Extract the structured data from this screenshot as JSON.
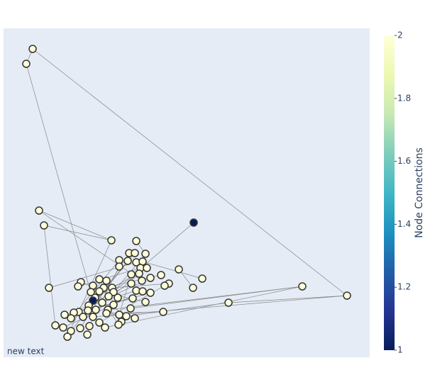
{
  "chart_data": {
    "type": "network",
    "annotation": "new text",
    "colorbar_title": "Node Connections",
    "xlim": [
      0,
      516
    ],
    "ylim": [
      0,
      464
    ],
    "x": [
      41,
      32,
      50,
      57,
      268,
      152,
      187,
      177,
      185,
      200,
      163,
      175,
      187,
      196,
      163,
      193,
      202,
      247,
      180,
      191,
      222,
      207,
      280,
      135,
      145,
      109,
      195,
      180,
      233,
      227,
      64,
      105,
      126,
      153,
      141,
      123,
      135,
      155,
      267,
      187,
      196,
      207,
      421,
      484,
      148,
      129,
      161,
      182,
      200,
      126,
      139,
      155,
      120,
      317,
      147,
      130,
      119,
      106,
      99,
      179,
      225,
      163,
      173,
      86,
      95,
      112,
      126,
      145,
      135,
      166,
      185,
      73,
      84,
      108,
      121,
      143,
      162,
      95,
      118,
      90
    ],
    "y": [
      435,
      414,
      207,
      186,
      190,
      165,
      164,
      147,
      147,
      146,
      137,
      136,
      134,
      135,
      128,
      126,
      126,
      124,
      117,
      118,
      116,
      112,
      111,
      110,
      108,
      106,
      108,
      104,
      104,
      101,
      98,
      100,
      101,
      98,
      98,
      92,
      93,
      92,
      98,
      94,
      93,
      91,
      100,
      87,
      86,
      84,
      84,
      83,
      78,
      80,
      77,
      74,
      73,
      77,
      67,
      67,
      66,
      64,
      63,
      69,
      64,
      60,
      58,
      60,
      55,
      57,
      57,
      62,
      49,
      50,
      55,
      45,
      42,
      41,
      44,
      42,
      46,
      37,
      32,
      29
    ],
    "values": [
      2,
      2,
      2,
      2,
      1,
      2,
      2,
      2,
      2,
      2,
      2,
      2,
      2,
      2,
      2,
      2,
      2,
      2,
      2,
      2,
      2,
      2,
      2,
      2,
      2,
      2,
      2,
      2,
      2,
      2,
      2,
      2,
      2,
      2,
      2,
      2,
      2,
      2,
      2,
      2,
      2,
      2,
      2,
      2,
      2,
      2,
      2,
      2,
      2,
      1,
      2,
      2,
      2,
      2,
      2,
      2,
      2,
      2,
      2,
      2,
      2,
      2,
      2,
      2,
      2,
      2,
      2,
      2,
      2,
      2,
      2,
      2,
      2,
      2,
      2,
      2,
      2,
      2,
      2,
      2
    ],
    "edges": [
      [
        0,
        43
      ],
      [
        0,
        1
      ],
      [
        1,
        49
      ],
      [
        43,
        53
      ],
      [
        43,
        66
      ],
      [
        42,
        54
      ],
      [
        42,
        75
      ],
      [
        42,
        59
      ],
      [
        4,
        37
      ],
      [
        2,
        26
      ],
      [
        2,
        5
      ],
      [
        3,
        5
      ],
      [
        3,
        71
      ],
      [
        30,
        12
      ],
      [
        5,
        79
      ],
      [
        17,
        38
      ],
      [
        22,
        13
      ],
      [
        60,
        67
      ],
      [
        53,
        62
      ],
      [
        28,
        33
      ],
      [
        20,
        34
      ],
      [
        6,
        9
      ],
      [
        24,
        51
      ],
      [
        7,
        73
      ],
      [
        10,
        64
      ],
      [
        35,
        69
      ],
      [
        25,
        46
      ],
      [
        31,
        15
      ],
      [
        21,
        57
      ],
      [
        40,
        72
      ],
      [
        18,
        61
      ],
      [
        14,
        74
      ],
      [
        11,
        77
      ],
      [
        44,
        23
      ],
      [
        47,
        63
      ],
      [
        48,
        36
      ],
      [
        16,
        45
      ],
      [
        19,
        55
      ],
      [
        27,
        58
      ],
      [
        50,
        70
      ],
      [
        52,
        39
      ],
      [
        41,
        56
      ],
      [
        8,
        65
      ],
      [
        29,
        68
      ],
      [
        32,
        76
      ],
      [
        9,
        66
      ]
    ],
    "edge_color": "#888888",
    "node_line_color": "#333333",
    "background": "#e5ecf6",
    "clim": [
      1,
      2
    ],
    "cticks": [
      1,
      1.2,
      1.4,
      1.6,
      1.8,
      2
    ],
    "colorscale": [
      "#081d58",
      "#253494",
      "#225ea8",
      "#1d91c0",
      "#41b6c4",
      "#7fcdbb",
      "#c7e9b4",
      "#edf8b1",
      "#ffffd9"
    ]
  }
}
